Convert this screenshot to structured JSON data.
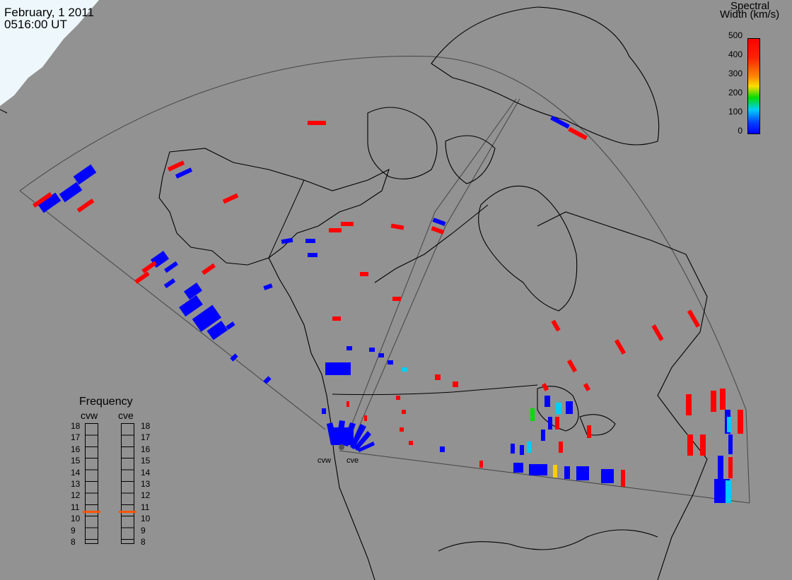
{
  "header": {
    "date": "February, 1 2011",
    "time": "0516:00 UT"
  },
  "colorbar": {
    "title_line1": "Spectral",
    "title_line2": "Width (km/s)",
    "ticks": [
      "500",
      "400",
      "300",
      "200",
      "100",
      "0"
    ],
    "colors": [
      "#ff0000",
      "#ff6600",
      "#ffcc00",
      "#00dd00",
      "#00ccff",
      "#0000ff"
    ]
  },
  "frequency": {
    "title": "Frequency",
    "left_label": "cvw",
    "right_label": "cve",
    "ticks": [
      "18",
      "17",
      "16",
      "15",
      "14",
      "13",
      "12",
      "11",
      "10",
      "9",
      "8"
    ],
    "cvw_value": 10.8,
    "cve_value": 10.8
  },
  "radars": {
    "west": "cvw",
    "east": "cve"
  },
  "colors": {
    "background": "#929292",
    "ice": "#f0f8fc",
    "coast": "#000000",
    "marker": "#ff6600"
  }
}
